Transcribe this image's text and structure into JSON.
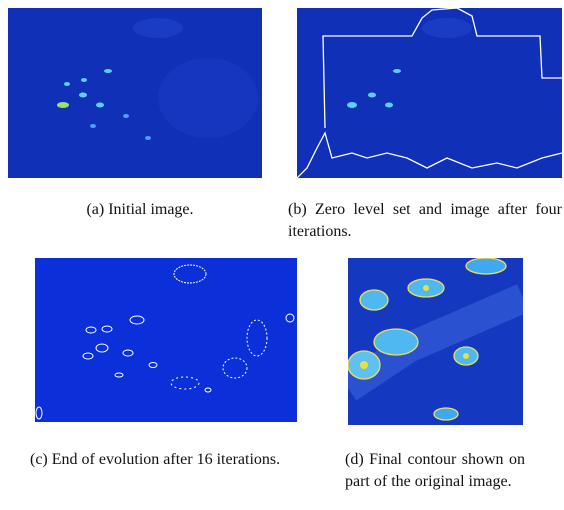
{
  "figure": {
    "subfigures": [
      {
        "caption": "(a) Initial image."
      },
      {
        "caption": "(b) Zero level set and image after four iterations."
      },
      {
        "caption": "(c) End of evolution after 16 iterations."
      },
      {
        "caption": "(d) Final contour shown on part of the original image."
      }
    ]
  }
}
